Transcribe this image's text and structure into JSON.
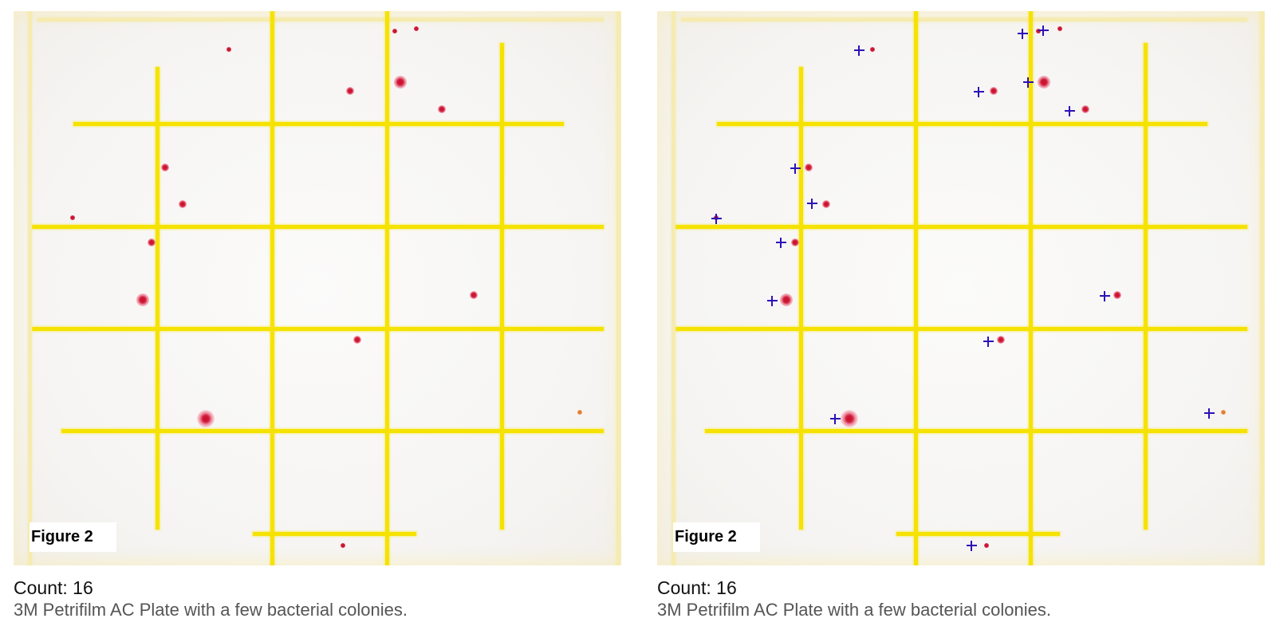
{
  "panels": [
    {
      "figure_label": "Figure 2",
      "count_text": "Count: 16",
      "description": "3M Petrifilm AC Plate with a few bacterial colonies.",
      "show_markers": false
    },
    {
      "figure_label": "Figure 2",
      "count_text": "Count: 16",
      "description": "3M Petrifilm AC Plate with a few bacterial colonies.",
      "show_markers": true
    }
  ],
  "colors": {
    "grid_yellow": "#f6e200",
    "colony_red": "#d21c3a",
    "marker_blue": "#2c12b8"
  }
}
